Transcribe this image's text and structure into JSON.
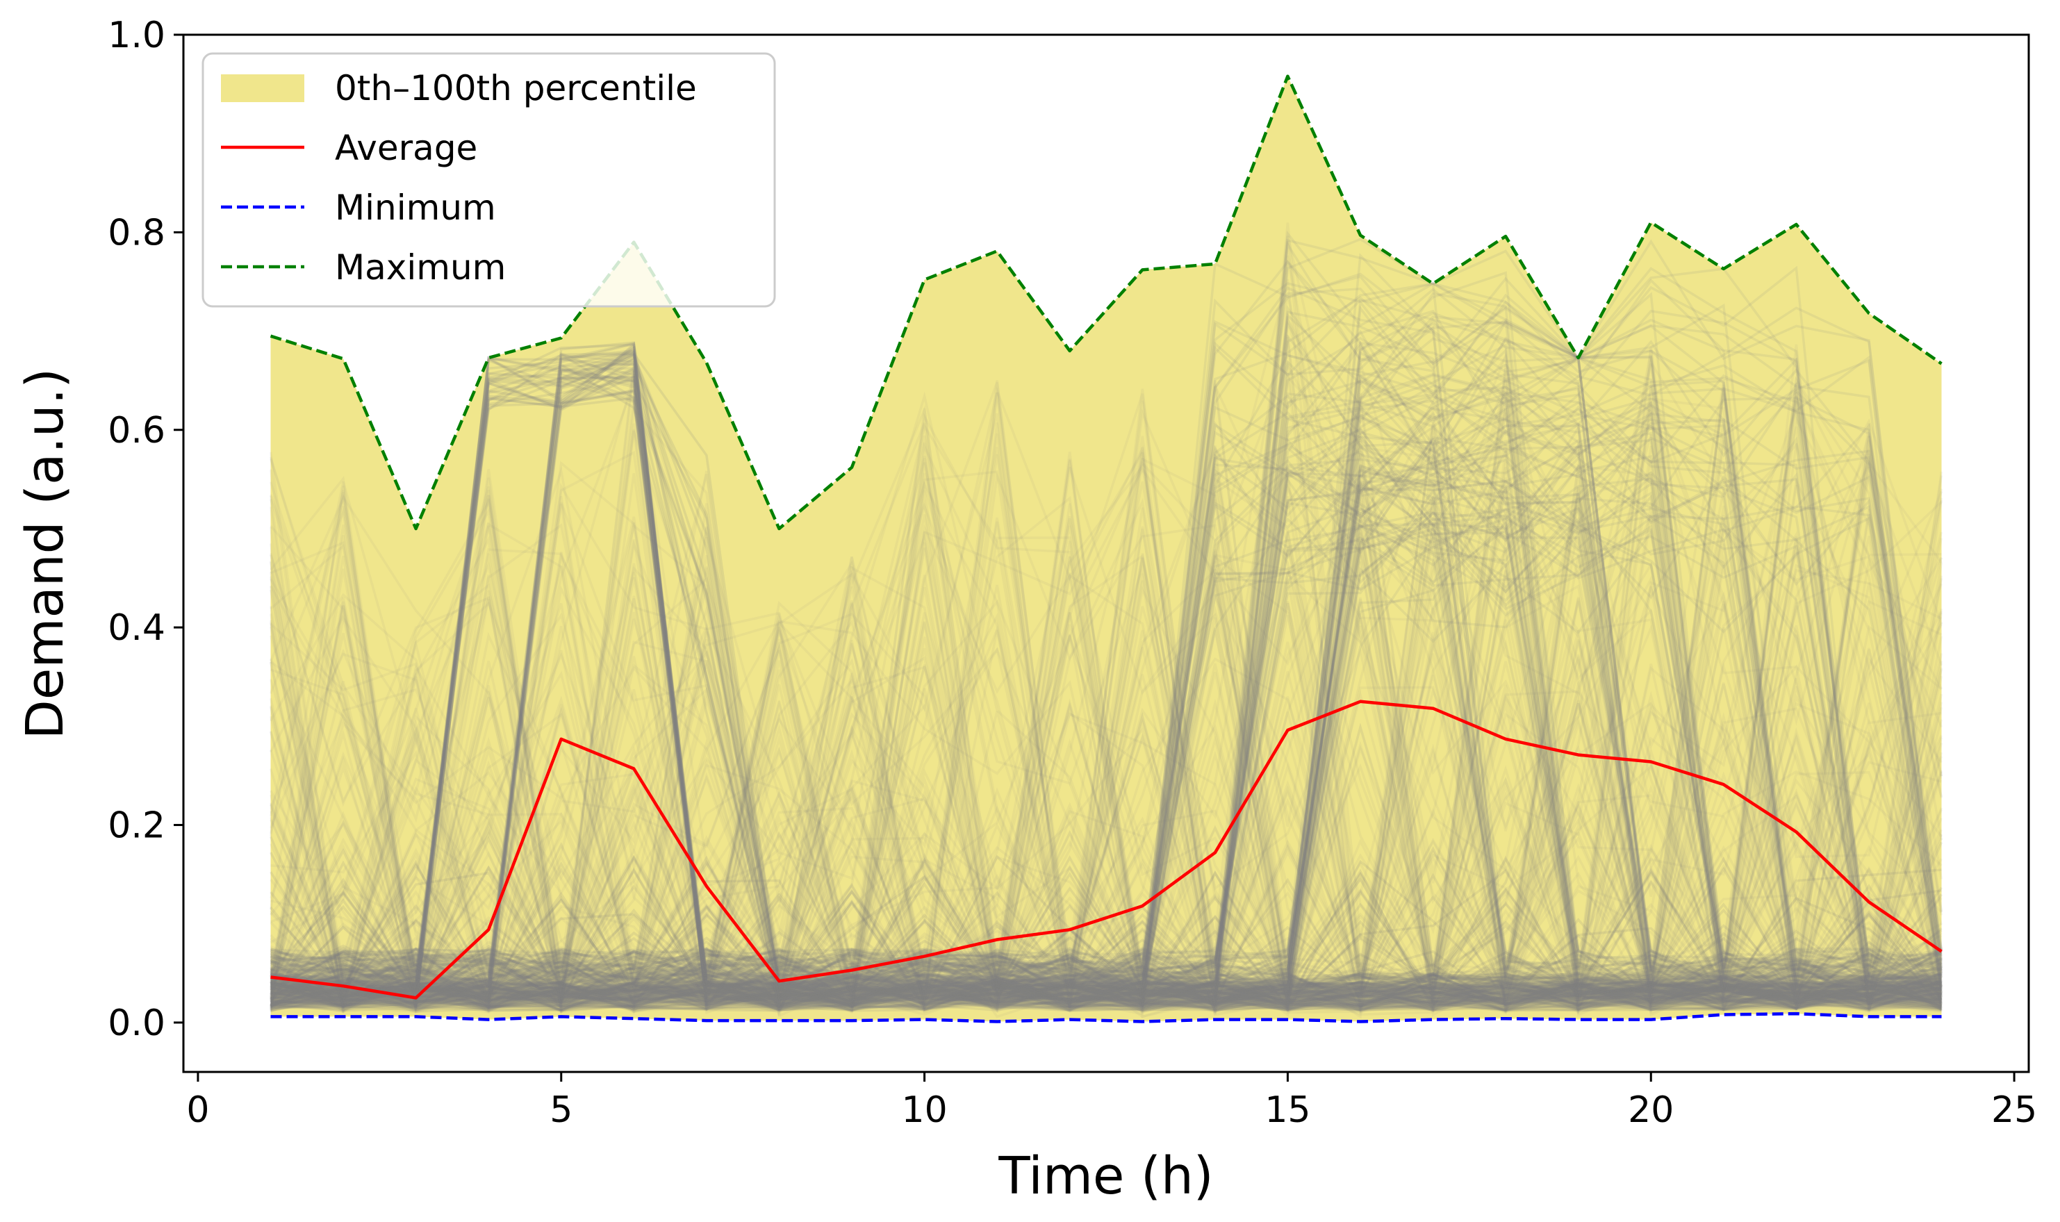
{
  "chart_data": {
    "type": "line",
    "title": "",
    "xlabel": "Time (h)",
    "ylabel": "Demand (a.u.)",
    "xlim": [
      -0.2,
      25.2
    ],
    "ylim": [
      -0.05,
      1.0
    ],
    "xticks": [
      0,
      5,
      10,
      15,
      20,
      25
    ],
    "yticks": [
      0.0,
      0.2,
      0.4,
      0.6,
      0.8,
      1.0
    ],
    "xtick_labels": [
      "0",
      "5",
      "10",
      "15",
      "20",
      "25"
    ],
    "ytick_labels": [
      "0.0",
      "0.2",
      "0.4",
      "0.6",
      "0.8",
      "1.0"
    ],
    "grid": false,
    "legend_position": "top-left",
    "x": [
      1,
      2,
      3,
      4,
      5,
      6,
      7,
      8,
      9,
      10,
      11,
      12,
      13,
      14,
      15,
      16,
      17,
      18,
      19,
      20,
      21,
      22,
      23,
      24
    ],
    "band": {
      "name": "0th–100th percentile",
      "color": "#F0E68C",
      "lower": [
        0.006,
        0.006,
        0.006,
        0.003,
        0.006,
        0.004,
        0.002,
        0.002,
        0.002,
        0.003,
        0.001,
        0.003,
        0.001,
        0.003,
        0.003,
        0.001,
        0.003,
        0.004,
        0.003,
        0.003,
        0.008,
        0.009,
        0.006,
        0.006
      ],
      "upper": [
        0.695,
        0.672,
        0.5,
        0.673,
        0.693,
        0.79,
        0.668,
        0.5,
        0.562,
        0.752,
        0.781,
        0.68,
        0.762,
        0.768,
        0.958,
        0.797,
        0.748,
        0.796,
        0.673,
        0.81,
        0.763,
        0.808,
        0.718,
        0.667
      ]
    },
    "series": [
      {
        "name": "Average",
        "color": "#FF0000",
        "style": "solid",
        "values": [
          0.046,
          0.037,
          0.025,
          0.094,
          0.287,
          0.257,
          0.138,
          0.042,
          0.053,
          0.067,
          0.084,
          0.094,
          0.118,
          0.172,
          0.296,
          0.325,
          0.318,
          0.287,
          0.271,
          0.264,
          0.241,
          0.193,
          0.122,
          0.072
        ]
      },
      {
        "name": "Minimum",
        "color": "#0000FF",
        "style": "dashed",
        "values": [
          0.006,
          0.006,
          0.006,
          0.003,
          0.006,
          0.004,
          0.002,
          0.002,
          0.002,
          0.003,
          0.001,
          0.003,
          0.001,
          0.003,
          0.003,
          0.001,
          0.003,
          0.004,
          0.003,
          0.003,
          0.008,
          0.009,
          0.006,
          0.006
        ]
      },
      {
        "name": "Maximum",
        "color": "#008000",
        "style": "dashed",
        "values": [
          0.695,
          0.672,
          0.5,
          0.673,
          0.693,
          0.79,
          0.668,
          0.5,
          0.562,
          0.752,
          0.781,
          0.68,
          0.762,
          0.768,
          0.958,
          0.797,
          0.748,
          0.796,
          0.673,
          0.81,
          0.763,
          0.808,
          0.718,
          0.667
        ]
      }
    ],
    "profiles_color": "#808080",
    "legend": [
      "0th–100th percentile",
      "Average",
      "Minimum",
      "Maximum"
    ]
  }
}
